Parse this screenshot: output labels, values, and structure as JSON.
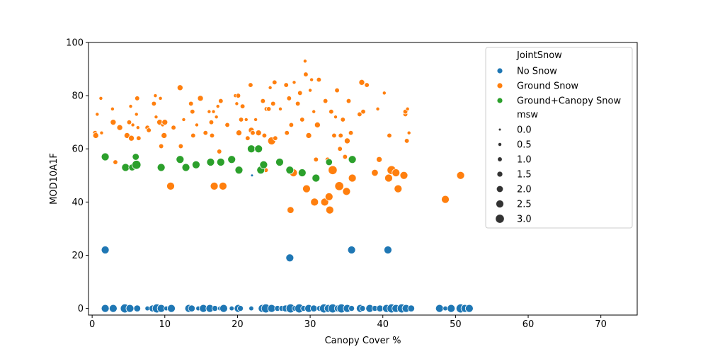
{
  "chart_data": {
    "type": "scatter",
    "xlabel": "Canopy Cover %",
    "ylabel": "MOD10A1F",
    "xlim": [
      -0.5,
      75
    ],
    "ylim": [
      -2.5,
      100
    ],
    "xticks": [
      0,
      10,
      20,
      30,
      40,
      50,
      60,
      70
    ],
    "yticks": [
      0,
      20,
      40,
      60,
      80,
      100
    ],
    "grid": false,
    "legend_position": "top-right",
    "legend": {
      "hue_title": "JointSnow",
      "size_title": "msw",
      "size_levels": [
        "0.0",
        "0.5",
        "1.0",
        "1.5",
        "2.0",
        "2.5",
        "3.0"
      ]
    },
    "series": [
      {
        "name": "No Snow",
        "color": "#1f77b4",
        "points": [
          [
            1.8,
            22,
            2.5
          ],
          [
            27.2,
            19,
            2.5
          ],
          [
            35.7,
            22,
            2.5
          ],
          [
            40.7,
            22,
            2.5
          ],
          [
            1.8,
            0,
            2.5
          ],
          [
            2.9,
            0,
            2.5
          ],
          [
            4.5,
            0,
            3
          ],
          [
            5.2,
            0,
            2.5
          ],
          [
            6.2,
            0,
            2
          ],
          [
            7.6,
            0,
            1
          ],
          [
            8.3,
            0,
            2
          ],
          [
            8.9,
            0,
            3
          ],
          [
            9.5,
            0,
            2.5
          ],
          [
            10.2,
            0,
            1
          ],
          [
            10.9,
            0,
            2.5
          ],
          [
            13.3,
            0,
            2.5
          ],
          [
            13.7,
            0,
            2
          ],
          [
            14.6,
            0,
            1
          ],
          [
            15.3,
            0,
            2.5
          ],
          [
            16.2,
            0,
            2.5
          ],
          [
            16.9,
            0,
            1.5
          ],
          [
            17.6,
            0,
            1
          ],
          [
            18.1,
            0,
            2.5
          ],
          [
            19.2,
            0,
            1
          ],
          [
            20.1,
            0,
            2.5
          ],
          [
            20.4,
            0,
            1.5
          ],
          [
            21.9,
            0,
            1
          ],
          [
            23.4,
            0,
            2.5
          ],
          [
            23.9,
            0,
            3
          ],
          [
            24.7,
            0,
            2.5
          ],
          [
            25.5,
            0,
            1.5
          ],
          [
            26.1,
            0,
            1.5
          ],
          [
            26.6,
            0,
            2
          ],
          [
            27.3,
            0,
            3
          ],
          [
            27.9,
            0,
            1.5
          ],
          [
            28.5,
            0,
            3
          ],
          [
            29.1,
            0,
            1.5
          ],
          [
            29.8,
            0,
            2.5
          ],
          [
            30.5,
            0,
            2
          ],
          [
            31.3,
            0,
            1.5
          ],
          [
            31.9,
            0,
            3
          ],
          [
            32.5,
            0,
            2.5
          ],
          [
            33.1,
            0,
            3
          ],
          [
            33.8,
            0,
            2
          ],
          [
            34.3,
            0,
            3
          ],
          [
            35.1,
            0,
            2.5
          ],
          [
            35.7,
            0,
            1.5
          ],
          [
            36.9,
            0,
            2.5
          ],
          [
            37.2,
            0,
            1.5
          ],
          [
            38.2,
            0,
            2.5
          ],
          [
            38.9,
            0,
            1.5
          ],
          [
            39.6,
            0,
            2
          ],
          [
            40.5,
            0,
            2.5
          ],
          [
            41.2,
            0,
            3
          ],
          [
            41.8,
            0,
            2.5
          ],
          [
            42.6,
            0,
            3
          ],
          [
            43.2,
            0,
            2.5
          ],
          [
            43.9,
            0,
            2
          ],
          [
            47.8,
            0,
            2.5
          ],
          [
            48.6,
            0,
            1
          ],
          [
            49.4,
            0,
            2.5
          ],
          [
            50.7,
            0,
            3
          ],
          [
            51.3,
            0,
            2.5
          ],
          [
            51.9,
            0,
            2.5
          ],
          [
            22.0,
            50,
            0
          ]
        ]
      },
      {
        "name": "Ground Snow",
        "color": "#ff7f0e",
        "points": [
          [
            0.4,
            66,
            1
          ],
          [
            0.5,
            65,
            1.5
          ],
          [
            0.7,
            73,
            0.5
          ],
          [
            1.2,
            79,
            0.5
          ],
          [
            1.3,
            66,
            0.5
          ],
          [
            2.8,
            75,
            0.5
          ],
          [
            2.9,
            70,
            1.5
          ],
          [
            3.2,
            55,
            1
          ],
          [
            3.8,
            68,
            1.5
          ],
          [
            4.8,
            65,
            1.5
          ],
          [
            5.1,
            70,
            1
          ],
          [
            5.3,
            76,
            0.5
          ],
          [
            5.4,
            64,
            1.5
          ],
          [
            5.6,
            69,
            0.5
          ],
          [
            6.1,
            73,
            0.5
          ],
          [
            6.2,
            79,
            1
          ],
          [
            6.3,
            68,
            0.5
          ],
          [
            6.4,
            64,
            1
          ],
          [
            7.6,
            68,
            1
          ],
          [
            7.8,
            67,
            1
          ],
          [
            8.5,
            77,
            1
          ],
          [
            8.7,
            80,
            0.5
          ],
          [
            8.8,
            72,
            0.5
          ],
          [
            9.3,
            70,
            1.5
          ],
          [
            9.4,
            79,
            0.5
          ],
          [
            9.5,
            61,
            1
          ],
          [
            9.7,
            69,
            0.5
          ],
          [
            10,
            70,
            1.5
          ],
          [
            9.9,
            65,
            1.5
          ],
          [
            10.8,
            46,
            2.5
          ],
          [
            11.2,
            68,
            1
          ],
          [
            12.1,
            83,
            1.5
          ],
          [
            12.2,
            61,
            1
          ],
          [
            12.6,
            71,
            0.5
          ],
          [
            13.6,
            77,
            1
          ],
          [
            13.8,
            74,
            1
          ],
          [
            13.9,
            65,
            1
          ],
          [
            14.4,
            69,
            0.5
          ],
          [
            14.9,
            79,
            1.5
          ],
          [
            15.6,
            66,
            1
          ],
          [
            16.1,
            74,
            0.5
          ],
          [
            16.4,
            70,
            1
          ],
          [
            16.5,
            65,
            1
          ],
          [
            16.7,
            74,
            0.5
          ],
          [
            16.8,
            46,
            2.5
          ],
          [
            17.1,
            72,
            0.5
          ],
          [
            17.3,
            76,
            0.5
          ],
          [
            17.5,
            59,
            1
          ],
          [
            17.7,
            78,
            1
          ],
          [
            18.0,
            46,
            2.5
          ],
          [
            18.6,
            69,
            1
          ],
          [
            19.7,
            80,
            0.5
          ],
          [
            19.9,
            77,
            0.5
          ],
          [
            20.1,
            80,
            1
          ],
          [
            20.2,
            66,
            1.5
          ],
          [
            20.5,
            71,
            1
          ],
          [
            20.7,
            76,
            1
          ],
          [
            21.2,
            71,
            0.5
          ],
          [
            21.4,
            64,
            1
          ],
          [
            21.8,
            84,
            1
          ],
          [
            21.9,
            67,
            1.5
          ],
          [
            22.1,
            66,
            1
          ],
          [
            22.5,
            71,
            0.5
          ],
          [
            22.9,
            66,
            1.5
          ],
          [
            23.5,
            78,
            1
          ],
          [
            23.7,
            65,
            1
          ],
          [
            23.9,
            52,
            1
          ],
          [
            24.0,
            75,
            1
          ],
          [
            24.3,
            75,
            1
          ],
          [
            24.5,
            83,
            0.5
          ],
          [
            24.7,
            63,
            2.5
          ],
          [
            24.9,
            77,
            1
          ],
          [
            25.1,
            85,
            1
          ],
          [
            25.2,
            64,
            1
          ],
          [
            25.9,
            75,
            0.5
          ],
          [
            26.7,
            84,
            1
          ],
          [
            26.8,
            66,
            1
          ],
          [
            27.1,
            79,
            1
          ],
          [
            27.3,
            37,
            2
          ],
          [
            27.4,
            69,
            1
          ],
          [
            27.7,
            51,
            2.5
          ],
          [
            27.8,
            85,
            0.5
          ],
          [
            28.3,
            77,
            1
          ],
          [
            28.6,
            81,
            1
          ],
          [
            28.9,
            71,
            1
          ],
          [
            29.3,
            93,
            0.5
          ],
          [
            29.4,
            88,
            1
          ],
          [
            29.5,
            45,
            2.5
          ],
          [
            29.8,
            65,
            1.5
          ],
          [
            30.0,
            82,
            0.5
          ],
          [
            30.2,
            86,
            0.5
          ],
          [
            30.5,
            74,
            0.5
          ],
          [
            30.6,
            40,
            2.5
          ],
          [
            30.8,
            56,
            1
          ],
          [
            31.0,
            69,
            1.5
          ],
          [
            31.2,
            86,
            1
          ],
          [
            32.0,
            40,
            2.5
          ],
          [
            32.1,
            78,
            1
          ],
          [
            32.4,
            56,
            1
          ],
          [
            32.6,
            42,
            2.5
          ],
          [
            32.7,
            37,
            2.5
          ],
          [
            32.9,
            74,
            1
          ],
          [
            33.1,
            52,
            3
          ],
          [
            33.3,
            65,
            1
          ],
          [
            33.5,
            72,
            0.5
          ],
          [
            33.7,
            82,
            1
          ],
          [
            34.0,
            46,
            3
          ],
          [
            34.1,
            60,
            1
          ],
          [
            34.2,
            65,
            1
          ],
          [
            34.5,
            71,
            1
          ],
          [
            34.8,
            57,
            1
          ],
          [
            35.0,
            44,
            2.5
          ],
          [
            35.1,
            63,
            1.5
          ],
          [
            35.3,
            78,
            1
          ],
          [
            35.6,
            66,
            1
          ],
          [
            35.8,
            49,
            2.5
          ],
          [
            36.8,
            73,
            1
          ],
          [
            37.1,
            85,
            1.5
          ],
          [
            37.3,
            74,
            1
          ],
          [
            37.8,
            84,
            1
          ],
          [
            38.9,
            51,
            2
          ],
          [
            39.3,
            75,
            0.5
          ],
          [
            39.5,
            56,
            1.5
          ],
          [
            40.2,
            81,
            0.5
          ],
          [
            40.8,
            49,
            2.5
          ],
          [
            40.9,
            65,
            1
          ],
          [
            41.2,
            52,
            3
          ],
          [
            41.8,
            51,
            2.5
          ],
          [
            42.1,
            45,
            2.5
          ],
          [
            42.9,
            50,
            2.5
          ],
          [
            43.1,
            73,
            1
          ],
          [
            43.1,
            74,
            1
          ],
          [
            43.3,
            63,
            1
          ],
          [
            43.4,
            75,
            0.5
          ],
          [
            43.6,
            66,
            0.5
          ],
          [
            48.6,
            41,
            2.5
          ],
          [
            50.7,
            50,
            2.5
          ]
        ]
      },
      {
        "name": "Ground+Canopy Snow",
        "color": "#2ca02c",
        "points": [
          [
            1.8,
            57,
            2.5
          ],
          [
            4.6,
            53,
            2.5
          ],
          [
            5.5,
            53,
            2
          ],
          [
            6.1,
            54,
            3
          ],
          [
            6.0,
            57,
            2
          ],
          [
            9.5,
            53,
            2.5
          ],
          [
            12.1,
            56,
            2.5
          ],
          [
            12.9,
            53,
            2.5
          ],
          [
            14.3,
            54,
            2.5
          ],
          [
            16.3,
            55,
            2.5
          ],
          [
            17.7,
            55,
            2.5
          ],
          [
            19.2,
            56,
            2.5
          ],
          [
            20.2,
            52,
            2.5
          ],
          [
            21.9,
            60,
            2.5
          ],
          [
            22.9,
            60,
            2.5
          ],
          [
            23.2,
            52,
            2.5
          ],
          [
            23.6,
            54,
            2.5
          ],
          [
            25.8,
            55,
            2.5
          ],
          [
            27.2,
            52,
            2.5
          ],
          [
            28.9,
            51,
            2.5
          ],
          [
            30.8,
            49,
            2.5
          ],
          [
            32.6,
            55,
            2
          ],
          [
            35.8,
            56,
            2.5
          ]
        ]
      }
    ]
  }
}
